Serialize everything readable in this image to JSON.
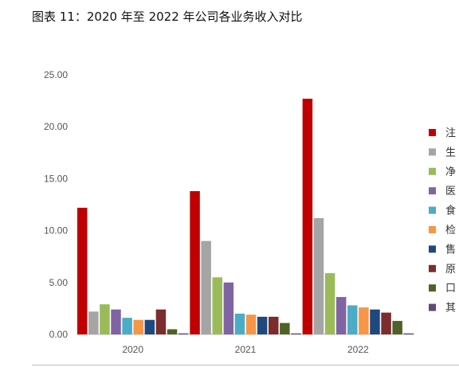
{
  "figure_title": "图表  11：2020 年至 2022 年公司各业务收入对比",
  "chart_data": {
    "type": "bar",
    "categories": [
      "2020",
      "2021",
      "2022"
    ],
    "ylim": [
      0,
      25
    ],
    "yticks": [
      "0.00",
      "5.00",
      "10.00",
      "15.00",
      "20.00",
      "25.00"
    ],
    "grid": false,
    "legend_position": "right",
    "series": [
      {
        "name": "注",
        "color": "#c00000",
        "values": [
          12.2,
          13.8,
          22.7
        ]
      },
      {
        "name": "生",
        "color": "#a5a5a5",
        "values": [
          2.2,
          9.0,
          11.2
        ]
      },
      {
        "name": "净",
        "color": "#9bbb59",
        "values": [
          2.9,
          5.5,
          5.9
        ]
      },
      {
        "name": "医",
        "color": "#8064a2",
        "values": [
          2.4,
          5.0,
          3.6
        ]
      },
      {
        "name": "食",
        "color": "#4bacc6",
        "values": [
          1.6,
          2.0,
          2.8
        ]
      },
      {
        "name": "检",
        "color": "#f79646",
        "values": [
          1.4,
          1.9,
          2.6
        ]
      },
      {
        "name": "售",
        "color": "#1f497d",
        "values": [
          1.4,
          1.7,
          2.4
        ]
      },
      {
        "name": "原",
        "color": "#7b2c2c",
        "values": [
          2.4,
          1.7,
          2.1
        ]
      },
      {
        "name": "口",
        "color": "#4f6228",
        "values": [
          0.5,
          1.1,
          1.3
        ]
      },
      {
        "name": "其",
        "color": "#5f497a",
        "values": [
          0.1,
          0.1,
          0.1
        ]
      }
    ]
  }
}
